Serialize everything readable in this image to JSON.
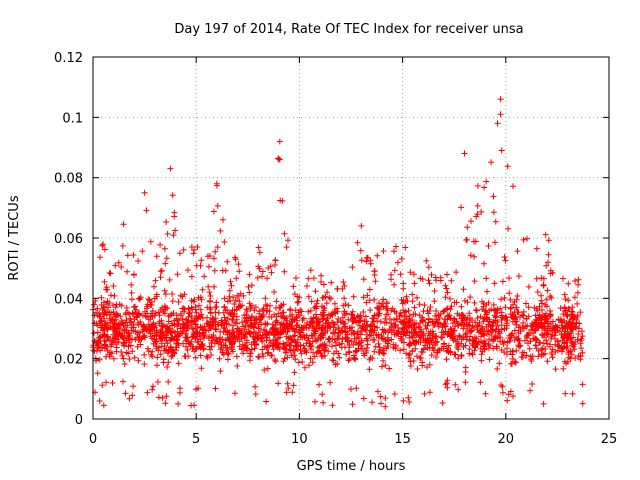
{
  "chart_data": {
    "type": "scatter",
    "title": "Day 197 of 2014, Rate Of TEC Index for receiver unsa",
    "xlabel": "GPS time / hours",
    "ylabel": "ROTI / TECUs",
    "xlim": [
      0,
      25
    ],
    "ylim": [
      0,
      0.12
    ],
    "xticks": [
      0,
      5,
      10,
      15,
      20,
      25
    ],
    "xtick_labels": [
      "0",
      "5",
      "10",
      "15",
      "20",
      "25"
    ],
    "yticks": [
      0,
      0.02,
      0.04,
      0.06,
      0.08,
      0.1,
      0.12
    ],
    "ytick_labels": [
      "0",
      "0.02",
      "0.04",
      "0.06",
      "0.08",
      "0.1",
      "0.12"
    ],
    "grid": true,
    "marker": "+",
    "color": "#ff0000",
    "series": [
      {
        "name": "ROTI",
        "x_range_hours": [
          0,
          23.75
        ],
        "typical_band": [
          0.01,
          0.04
        ],
        "envelope": [
          {
            "x": 0.0,
            "high": 0.045
          },
          {
            "x": 0.5,
            "high": 0.059
          },
          {
            "x": 1.0,
            "high": 0.05
          },
          {
            "x": 1.5,
            "high": 0.066
          },
          {
            "x": 2.0,
            "high": 0.055
          },
          {
            "x": 2.5,
            "high": 0.075
          },
          {
            "x": 3.0,
            "high": 0.055
          },
          {
            "x": 3.5,
            "high": 0.065
          },
          {
            "x": 3.8,
            "high": 0.083
          },
          {
            "x": 4.5,
            "high": 0.055
          },
          {
            "x": 5.0,
            "high": 0.059
          },
          {
            "x": 5.5,
            "high": 0.052
          },
          {
            "x": 6.0,
            "high": 0.078
          },
          {
            "x": 6.5,
            "high": 0.06
          },
          {
            "x": 7.0,
            "high": 0.055
          },
          {
            "x": 7.5,
            "high": 0.061
          },
          {
            "x": 8.0,
            "high": 0.06
          },
          {
            "x": 8.5,
            "high": 0.056
          },
          {
            "x": 9.0,
            "high": 0.092
          },
          {
            "x": 9.5,
            "high": 0.065
          },
          {
            "x": 10.0,
            "high": 0.055
          },
          {
            "x": 10.5,
            "high": 0.052
          },
          {
            "x": 11.0,
            "high": 0.05
          },
          {
            "x": 12.0,
            "high": 0.045
          },
          {
            "x": 13.0,
            "high": 0.064
          },
          {
            "x": 13.5,
            "high": 0.053
          },
          {
            "x": 14.0,
            "high": 0.058
          },
          {
            "x": 14.5,
            "high": 0.055
          },
          {
            "x": 15.0,
            "high": 0.063
          },
          {
            "x": 15.5,
            "high": 0.05
          },
          {
            "x": 16.0,
            "high": 0.055
          },
          {
            "x": 16.5,
            "high": 0.05
          },
          {
            "x": 17.0,
            "high": 0.055
          },
          {
            "x": 17.5,
            "high": 0.06
          },
          {
            "x": 18.0,
            "high": 0.088
          },
          {
            "x": 18.5,
            "high": 0.08
          },
          {
            "x": 19.0,
            "high": 0.078
          },
          {
            "x": 19.5,
            "high": 0.092
          },
          {
            "x": 19.8,
            "high": 0.106
          },
          {
            "x": 20.5,
            "high": 0.07
          },
          {
            "x": 21.0,
            "high": 0.065
          },
          {
            "x": 21.5,
            "high": 0.063
          },
          {
            "x": 22.0,
            "high": 0.062
          },
          {
            "x": 22.5,
            "high": 0.05
          },
          {
            "x": 23.0,
            "high": 0.045
          },
          {
            "x": 23.75,
            "high": 0.047
          }
        ],
        "notable_points": [
          {
            "x": 3.75,
            "y": 0.083
          },
          {
            "x": 6.0,
            "y": 0.078
          },
          {
            "x": 9.05,
            "y": 0.092
          },
          {
            "x": 9.05,
            "y": 0.086
          },
          {
            "x": 18.0,
            "y": 0.088
          },
          {
            "x": 19.75,
            "y": 0.106
          },
          {
            "x": 19.75,
            "y": 0.101
          },
          {
            "x": 19.6,
            "y": 0.098
          },
          {
            "x": 19.8,
            "y": 0.089
          },
          {
            "x": 2.5,
            "y": 0.075
          },
          {
            "x": 13.0,
            "y": 0.064
          }
        ]
      }
    ]
  }
}
